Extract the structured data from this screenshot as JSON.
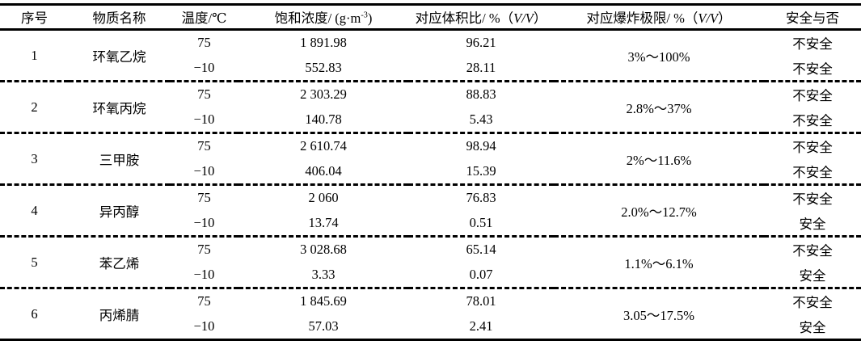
{
  "colors": {
    "text": "#000000",
    "rule": "#000000",
    "background": "#ffffff"
  },
  "table": {
    "headers": [
      {
        "id": "index",
        "parts": [
          {
            "t": "序号"
          }
        ]
      },
      {
        "id": "substance",
        "parts": [
          {
            "t": "物质名称"
          }
        ]
      },
      {
        "id": "temperature",
        "parts": [
          {
            "t": "温度/℃"
          }
        ]
      },
      {
        "id": "saturation",
        "parts": [
          {
            "t": "饱和浓度/ (g·m"
          },
          {
            "t": "-3",
            "style": "sup"
          },
          {
            "t": ")"
          }
        ]
      },
      {
        "id": "volume-ratio",
        "parts": [
          {
            "t": "对应体积比/ %（"
          },
          {
            "t": "V/V",
            "style": "italic"
          },
          {
            "t": "）"
          }
        ]
      },
      {
        "id": "explosion-limit",
        "parts": [
          {
            "t": "对应爆炸极限/ %（"
          },
          {
            "t": "V/V",
            "style": "italic"
          },
          {
            "t": "）"
          }
        ]
      },
      {
        "id": "safety",
        "parts": [
          {
            "t": "安全与否"
          }
        ]
      }
    ],
    "groups": [
      {
        "index": "1",
        "substance": "环氧乙烷",
        "explosion_limit": "3%～100%",
        "rows": [
          {
            "temperature": "75",
            "saturation": "1 891.98",
            "volume_ratio": "96.21",
            "safety": "不安全"
          },
          {
            "temperature": "−10",
            "saturation": "552.83",
            "volume_ratio": "28.11",
            "safety": "不安全"
          }
        ]
      },
      {
        "index": "2",
        "substance": "环氧丙烷",
        "explosion_limit": "2.8%～37%",
        "rows": [
          {
            "temperature": "75",
            "saturation": "2 303.29",
            "volume_ratio": "88.83",
            "safety": "不安全"
          },
          {
            "temperature": "−10",
            "saturation": "140.78",
            "volume_ratio": "5.43",
            "safety": "不安全"
          }
        ]
      },
      {
        "index": "3",
        "substance": "三甲胺",
        "explosion_limit": "2%～11.6%",
        "rows": [
          {
            "temperature": "75",
            "saturation": "2 610.74",
            "volume_ratio": "98.94",
            "safety": "不安全"
          },
          {
            "temperature": "−10",
            "saturation": "406.04",
            "volume_ratio": "15.39",
            "safety": "不安全"
          }
        ]
      },
      {
        "index": "4",
        "substance": "异丙醇",
        "explosion_limit": "2.0%～12.7%",
        "rows": [
          {
            "temperature": "75",
            "saturation": "2 060",
            "volume_ratio": "76.83",
            "safety": "不安全"
          },
          {
            "temperature": "−10",
            "saturation": "13.74",
            "volume_ratio": "0.51",
            "safety": "安全"
          }
        ]
      },
      {
        "index": "5",
        "substance": "苯乙烯",
        "explosion_limit": "1.1%～6.1%",
        "rows": [
          {
            "temperature": "75",
            "saturation": "3 028.68",
            "volume_ratio": "65.14",
            "safety": "不安全"
          },
          {
            "temperature": "−10",
            "saturation": "3.33",
            "volume_ratio": "0.07",
            "safety": "安全"
          }
        ]
      },
      {
        "index": "6",
        "substance": "丙烯腈",
        "explosion_limit": "3.05～17.5%",
        "rows": [
          {
            "temperature": "75",
            "saturation": "1 845.69",
            "volume_ratio": "78.01",
            "safety": "不安全"
          },
          {
            "temperature": "−10",
            "saturation": "57.03",
            "volume_ratio": "2.41",
            "safety": "安全"
          }
        ]
      }
    ]
  }
}
